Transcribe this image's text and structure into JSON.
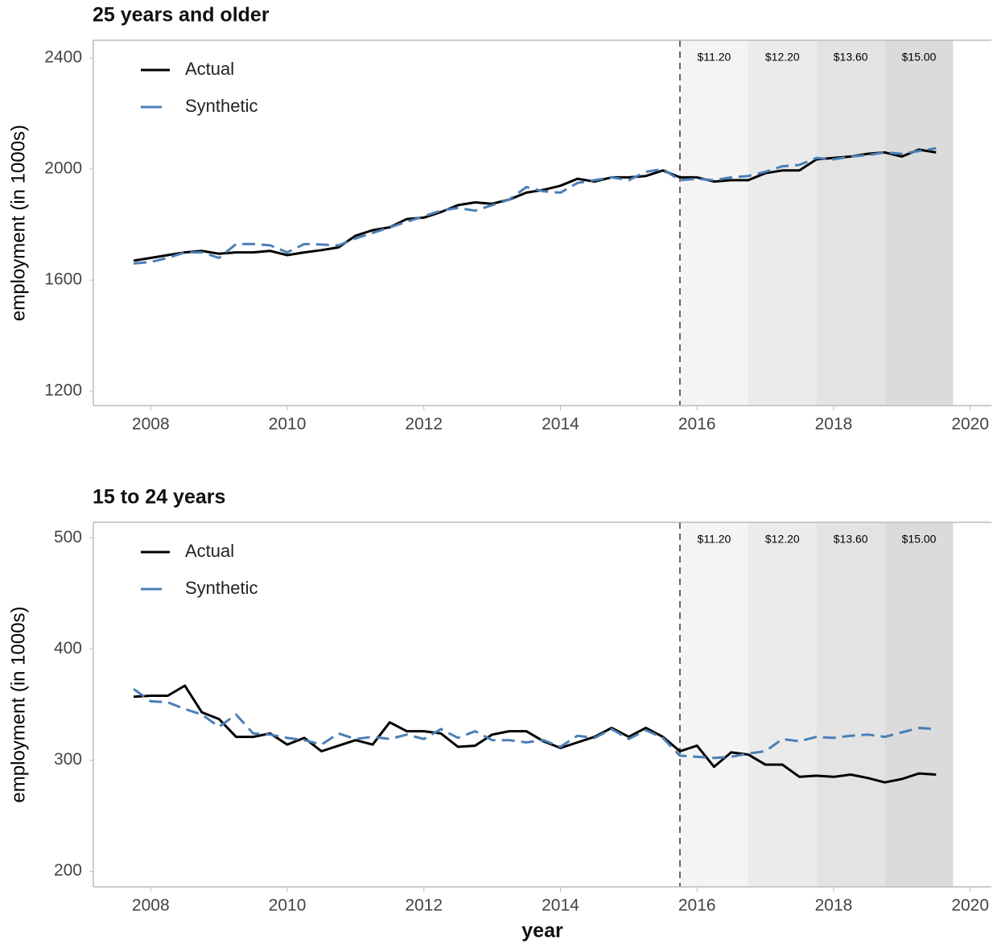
{
  "chart_data": [
    {
      "type": "line",
      "title": "25 years and older",
      "ylabel": "employment (in 1000s)",
      "x": [
        2007.75,
        2008,
        2008.25,
        2008.5,
        2008.75,
        2009,
        2009.25,
        2009.5,
        2009.75,
        2010,
        2010.25,
        2010.5,
        2010.75,
        2011,
        2011.25,
        2011.5,
        2011.75,
        2012,
        2012.25,
        2012.5,
        2012.75,
        2013,
        2013.25,
        2013.5,
        2013.75,
        2014,
        2014.25,
        2014.5,
        2014.75,
        2015,
        2015.25,
        2015.5,
        2015.75,
        2016,
        2016.25,
        2016.5,
        2016.75,
        2017,
        2017.25,
        2017.5,
        2017.75,
        2018,
        2018.25,
        2018.5,
        2018.75,
        2019,
        2019.25,
        2019.5
      ],
      "series": [
        {
          "name": "Actual",
          "color": "#000000",
          "dash": false,
          "values": [
            1670,
            1680,
            1690,
            1700,
            1705,
            1695,
            1700,
            1700,
            1705,
            1690,
            1700,
            1708,
            1718,
            1760,
            1780,
            1790,
            1820,
            1825,
            1845,
            1870,
            1880,
            1875,
            1890,
            1915,
            1925,
            1940,
            1965,
            1955,
            1970,
            1970,
            1975,
            1995,
            1970,
            1970,
            1955,
            1960,
            1960,
            1985,
            1995,
            1995,
            2035,
            2040,
            2045,
            2055,
            2060,
            2045,
            2070,
            2060
          ]
        },
        {
          "name": "Synthetic",
          "color": "#4a7fb5",
          "dash": true,
          "values": [
            1660,
            1665,
            1680,
            1700,
            1700,
            1680,
            1730,
            1730,
            1725,
            1700,
            1730,
            1728,
            1725,
            1750,
            1770,
            1790,
            1810,
            1830,
            1850,
            1860,
            1850,
            1870,
            1890,
            1935,
            1920,
            1915,
            1950,
            1960,
            1970,
            1960,
            1990,
            2000,
            1960,
            1965,
            1960,
            1970,
            1975,
            1990,
            2010,
            2015,
            2040,
            2035,
            2045,
            2050,
            2060,
            2055,
            2065,
            2075
          ]
        }
      ],
      "xlim": [
        2007.16,
        2020.31
      ],
      "xticks": [
        2008,
        2010,
        2012,
        2014,
        2016,
        2018,
        2020
      ],
      "ylim": [
        1148,
        2464
      ],
      "yticks": [
        1200,
        1600,
        2000,
        2400
      ],
      "vline": 2015.75,
      "shaded_periods": [
        {
          "start": 2015.75,
          "end": 2016.75,
          "label": "$11.20",
          "color": "#f4f4f4"
        },
        {
          "start": 2016.75,
          "end": 2017.75,
          "label": "$12.20",
          "color": "#ebebeb"
        },
        {
          "start": 2017.75,
          "end": 2018.75,
          "label": "$13.60",
          "color": "#e3e3e3"
        },
        {
          "start": 2018.75,
          "end": 2019.75,
          "label": "$15.00",
          "color": "#dbdbdb"
        }
      ],
      "legend": "upper left",
      "grid": false
    },
    {
      "type": "line",
      "title": "15 to 24 years",
      "ylabel": "employment (in 1000s)",
      "xlabel": "year",
      "x": [
        2007.75,
        2008,
        2008.25,
        2008.5,
        2008.75,
        2009,
        2009.25,
        2009.5,
        2009.75,
        2010,
        2010.25,
        2010.5,
        2010.75,
        2011,
        2011.25,
        2011.5,
        2011.75,
        2012,
        2012.25,
        2012.5,
        2012.75,
        2013,
        2013.25,
        2013.5,
        2013.75,
        2014,
        2014.25,
        2014.5,
        2014.75,
        2015,
        2015.25,
        2015.5,
        2015.75,
        2016,
        2016.25,
        2016.5,
        2016.75,
        2017,
        2017.25,
        2017.5,
        2017.75,
        2018,
        2018.25,
        2018.5,
        2018.75,
        2019,
        2019.25,
        2019.5
      ],
      "series": [
        {
          "name": "Actual",
          "color": "#000000",
          "dash": false,
          "values": [
            357,
            358,
            358,
            367,
            343,
            337,
            321,
            321,
            324,
            314,
            320,
            308,
            313,
            318,
            314,
            334,
            326,
            326,
            324,
            312,
            313,
            323,
            326,
            326,
            317,
            311,
            316,
            321,
            329,
            321,
            329,
            321,
            308,
            313,
            294,
            307,
            305,
            296,
            296,
            285,
            286,
            285,
            287,
            284,
            280,
            283,
            288,
            287
          ]
        },
        {
          "name": "Synthetic",
          "color": "#4a7fb5",
          "dash": true,
          "values": [
            364,
            353,
            352,
            346,
            341,
            330,
            341,
            324,
            323,
            320,
            318,
            314,
            324,
            319,
            321,
            319,
            323,
            319,
            328,
            320,
            326,
            318,
            318,
            316,
            318,
            312,
            322,
            320,
            328,
            319,
            327,
            320,
            304,
            303,
            302,
            303,
            306,
            308,
            319,
            317,
            321,
            320,
            322,
            323,
            321,
            325,
            329,
            328
          ]
        }
      ],
      "xlim": [
        2007.16,
        2020.31
      ],
      "xticks": [
        2008,
        2010,
        2012,
        2014,
        2016,
        2018,
        2020
      ],
      "ylim": [
        186,
        514
      ],
      "yticks": [
        200,
        300,
        400,
        500
      ],
      "vline": 2015.75,
      "shaded_periods": [
        {
          "start": 2015.75,
          "end": 2016.75,
          "label": "$11.20",
          "color": "#f4f4f4"
        },
        {
          "start": 2016.75,
          "end": 2017.75,
          "label": "$12.20",
          "color": "#ebebeb"
        },
        {
          "start": 2017.75,
          "end": 2018.75,
          "label": "$13.60",
          "color": "#e3e3e3"
        },
        {
          "start": 2018.75,
          "end": 2019.75,
          "label": "$15.00",
          "color": "#dbdbdb"
        }
      ],
      "legend": "upper left",
      "grid": false
    }
  ]
}
